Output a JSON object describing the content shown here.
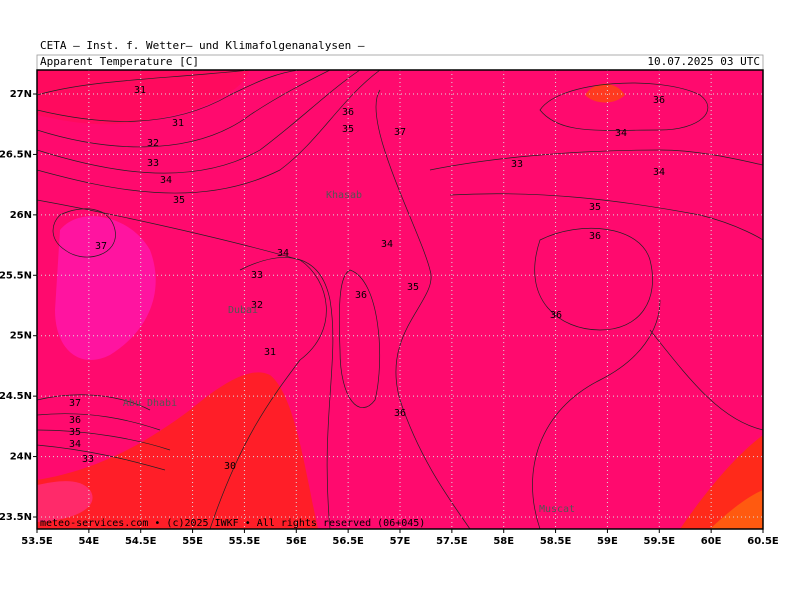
{
  "header": {
    "source": "CETA — Inst. f. Wetter— und Klimafolgenanalysen —",
    "title": "Apparent Temperature [C]",
    "timestamp": "10.07.2025 03 UTC"
  },
  "axes": {
    "x_labels": [
      "53.5E",
      "54E",
      "54.5E",
      "55E",
      "55.5E",
      "56E",
      "56.5E",
      "57E",
      "57.5E",
      "58E",
      "58.5E",
      "59E",
      "59.5E",
      "60E",
      "60.5E"
    ],
    "y_labels": [
      "27N",
      "26.5N",
      "26N",
      "25.5N",
      "25N",
      "24.5N",
      "24N",
      "23.5N"
    ]
  },
  "contour_labels": [
    "31",
    "31",
    "32",
    "33",
    "34",
    "35",
    "37",
    "36",
    "35",
    "37",
    "34",
    "33",
    "32",
    "31",
    "34",
    "36",
    "35",
    "33",
    "36",
    "34",
    "34",
    "35",
    "36",
    "36",
    "37",
    "36",
    "35",
    "34",
    "33",
    "30",
    "36"
  ],
  "places": [
    "Khasab",
    "Dubai",
    "Abu Dhabi",
    "Muscat"
  ],
  "footer": "meteo-services.com • (c)2025 IWKF • All rights reserved (06+045)"
}
